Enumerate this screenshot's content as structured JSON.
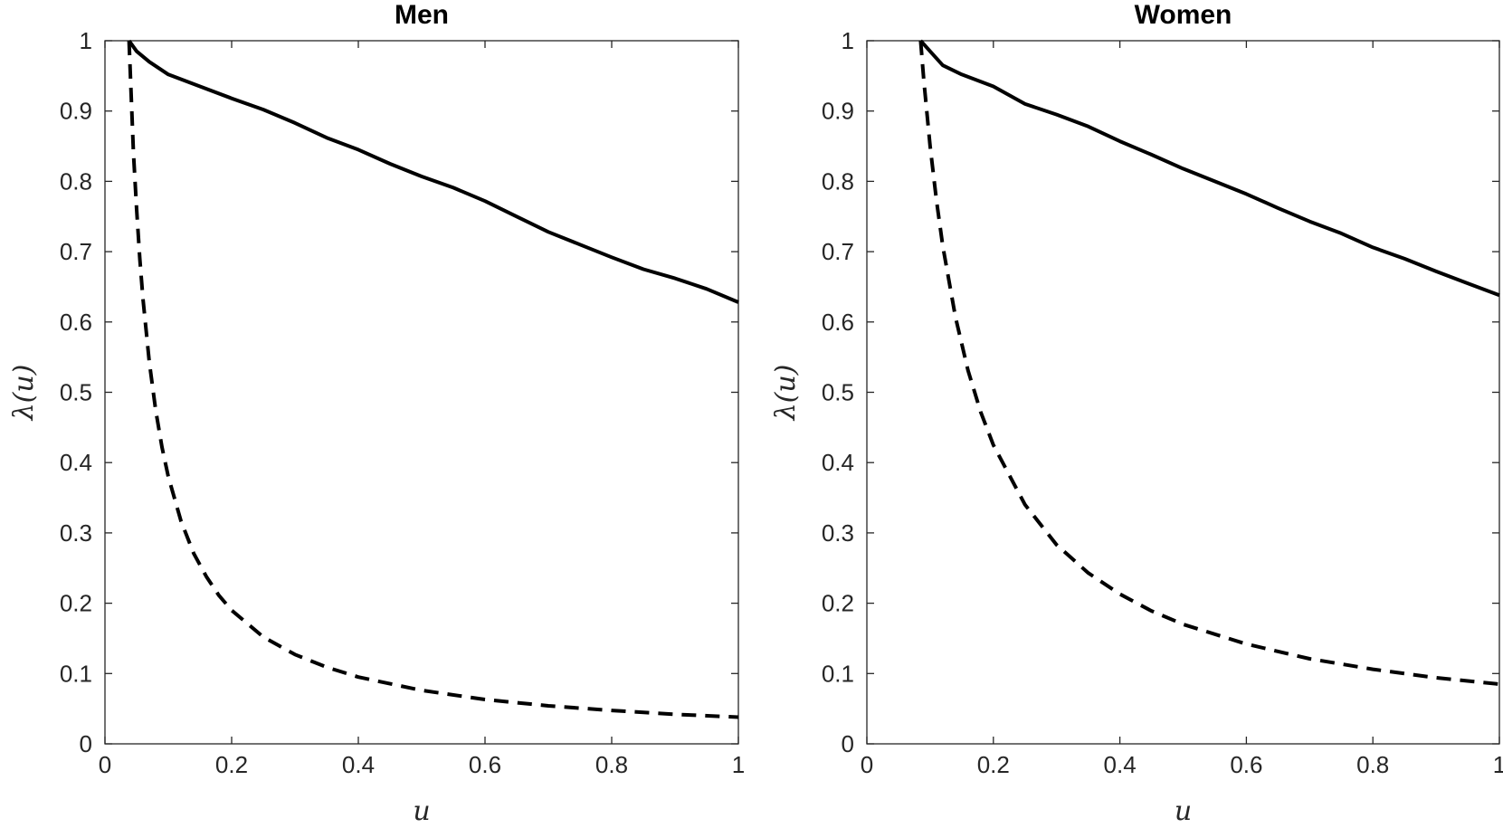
{
  "chart_data": [
    {
      "type": "line",
      "title": "Men",
      "xlabel": "u",
      "ylabel": "λ(u)",
      "xlim": [
        0,
        1
      ],
      "ylim": [
        0,
        1
      ],
      "xticks": [
        "0",
        "0.2",
        "0.4",
        "0.6",
        "0.8",
        "1"
      ],
      "yticks": [
        "0",
        "0.1",
        "0.2",
        "0.3",
        "0.4",
        "0.5",
        "0.6",
        "0.7",
        "0.8",
        "0.9",
        "1"
      ],
      "grid": false,
      "series": [
        {
          "name": "solid",
          "style": "solid",
          "x": [
            0.038,
            0.05,
            0.07,
            0.1,
            0.15,
            0.2,
            0.25,
            0.3,
            0.35,
            0.4,
            0.45,
            0.5,
            0.55,
            0.6,
            0.65,
            0.7,
            0.75,
            0.8,
            0.85,
            0.9,
            0.95,
            1.0
          ],
          "y": [
            1.0,
            0.985,
            0.97,
            0.952,
            0.935,
            0.918,
            0.902,
            0.883,
            0.862,
            0.845,
            0.825,
            0.807,
            0.791,
            0.772,
            0.75,
            0.728,
            0.71,
            0.692,
            0.675,
            0.662,
            0.647,
            0.628
          ]
        },
        {
          "name": "dashed",
          "style": "dashed",
          "x": [
            0.038,
            0.045,
            0.05,
            0.055,
            0.06,
            0.07,
            0.08,
            0.09,
            0.1,
            0.12,
            0.14,
            0.16,
            0.18,
            0.2,
            0.25,
            0.3,
            0.35,
            0.4,
            0.5,
            0.6,
            0.7,
            0.8,
            0.9,
            1.0
          ],
          "y": [
            1.0,
            0.84,
            0.76,
            0.69,
            0.633,
            0.543,
            0.475,
            0.422,
            0.38,
            0.317,
            0.271,
            0.238,
            0.211,
            0.19,
            0.152,
            0.127,
            0.109,
            0.095,
            0.076,
            0.063,
            0.054,
            0.0475,
            0.042,
            0.038
          ]
        }
      ]
    },
    {
      "type": "line",
      "title": "Women",
      "xlabel": "u",
      "ylabel": "λ(u)",
      "xlim": [
        0,
        1
      ],
      "ylim": [
        0,
        1
      ],
      "xticks": [
        "0",
        "0.2",
        "0.4",
        "0.6",
        "0.8",
        "1"
      ],
      "yticks": [
        "0",
        "0.1",
        "0.2",
        "0.3",
        "0.4",
        "0.5",
        "0.6",
        "0.7",
        "0.8",
        "0.9",
        "1"
      ],
      "grid": false,
      "series": [
        {
          "name": "solid",
          "style": "solid",
          "x": [
            0.085,
            0.1,
            0.12,
            0.15,
            0.2,
            0.25,
            0.3,
            0.35,
            0.4,
            0.45,
            0.5,
            0.55,
            0.6,
            0.65,
            0.7,
            0.75,
            0.8,
            0.85,
            0.9,
            0.95,
            1.0
          ],
          "y": [
            1.0,
            0.985,
            0.965,
            0.952,
            0.935,
            0.91,
            0.895,
            0.878,
            0.857,
            0.838,
            0.818,
            0.8,
            0.782,
            0.762,
            0.743,
            0.726,
            0.706,
            0.69,
            0.672,
            0.655,
            0.638
          ]
        },
        {
          "name": "dashed",
          "style": "dashed",
          "x": [
            0.085,
            0.09,
            0.1,
            0.11,
            0.12,
            0.14,
            0.16,
            0.18,
            0.2,
            0.25,
            0.3,
            0.35,
            0.4,
            0.45,
            0.5,
            0.6,
            0.7,
            0.8,
            0.9,
            1.0
          ],
          "y": [
            1.0,
            0.944,
            0.85,
            0.773,
            0.708,
            0.607,
            0.531,
            0.472,
            0.425,
            0.34,
            0.283,
            0.243,
            0.213,
            0.189,
            0.17,
            0.142,
            0.121,
            0.106,
            0.094,
            0.085
          ]
        }
      ]
    }
  ]
}
